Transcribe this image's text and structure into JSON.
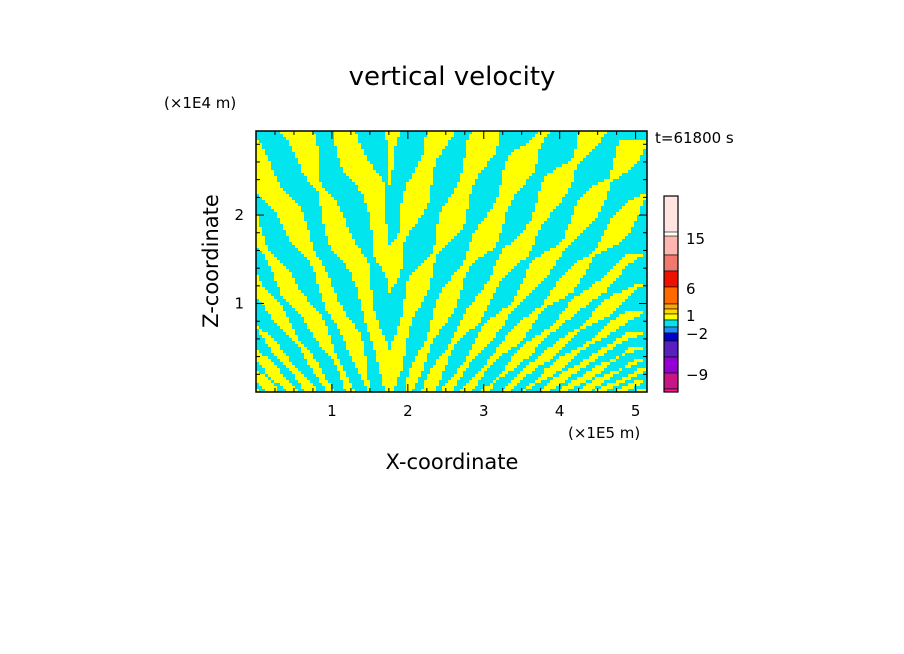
{
  "chart_data": {
    "type": "heatmap",
    "title": "vertical velocity",
    "xlabel": "X-coordinate",
    "ylabel": "Z-coordinate",
    "x_unit_label": "(×1E5 m)",
    "y_unit_label": "(×1E4 m)",
    "time_label": "t=61800 s",
    "xlim": [
      0,
      5.15
    ],
    "ylim": [
      0,
      2.95
    ],
    "x_ticks": [
      {
        "value": 1,
        "label": "1"
      },
      {
        "value": 2,
        "label": "2"
      },
      {
        "value": 3,
        "label": "3"
      },
      {
        "value": 4,
        "label": "4"
      },
      {
        "value": 5,
        "label": "5"
      }
    ],
    "y_ticks": [
      {
        "value": 1,
        "label": "1"
      },
      {
        "value": 2,
        "label": "2"
      }
    ],
    "field_colors": {
      "positive": "#ffff00",
      "negative": "#00e5ee"
    },
    "colorbar": {
      "levels_top_to_bottom": [
        {
          "color": "#ffe4e1"
        },
        {
          "color": "#ffb6b0"
        },
        {
          "color": "#f0786e"
        },
        {
          "color": "#ee1100"
        },
        {
          "color": "#ff6a00"
        },
        {
          "color": "#ffa500"
        },
        {
          "color": "#ffd700"
        },
        {
          "color": "#ffff00"
        },
        {
          "color": "#00e5ee"
        },
        {
          "color": "#1e90ff"
        },
        {
          "color": "#0000cd"
        },
        {
          "color": "#5a1fbf"
        },
        {
          "color": "#9400d3"
        },
        {
          "color": "#c71585"
        },
        {
          "color": "#ff1493"
        }
      ],
      "tick_labels": [
        {
          "label": "15",
          "level": 15
        },
        {
          "label": "6",
          "level": 6
        },
        {
          "label": "1",
          "level": 1
        },
        {
          "label": "−2",
          "level": -2
        },
        {
          "label": "−9",
          "level": -9
        }
      ]
    }
  }
}
